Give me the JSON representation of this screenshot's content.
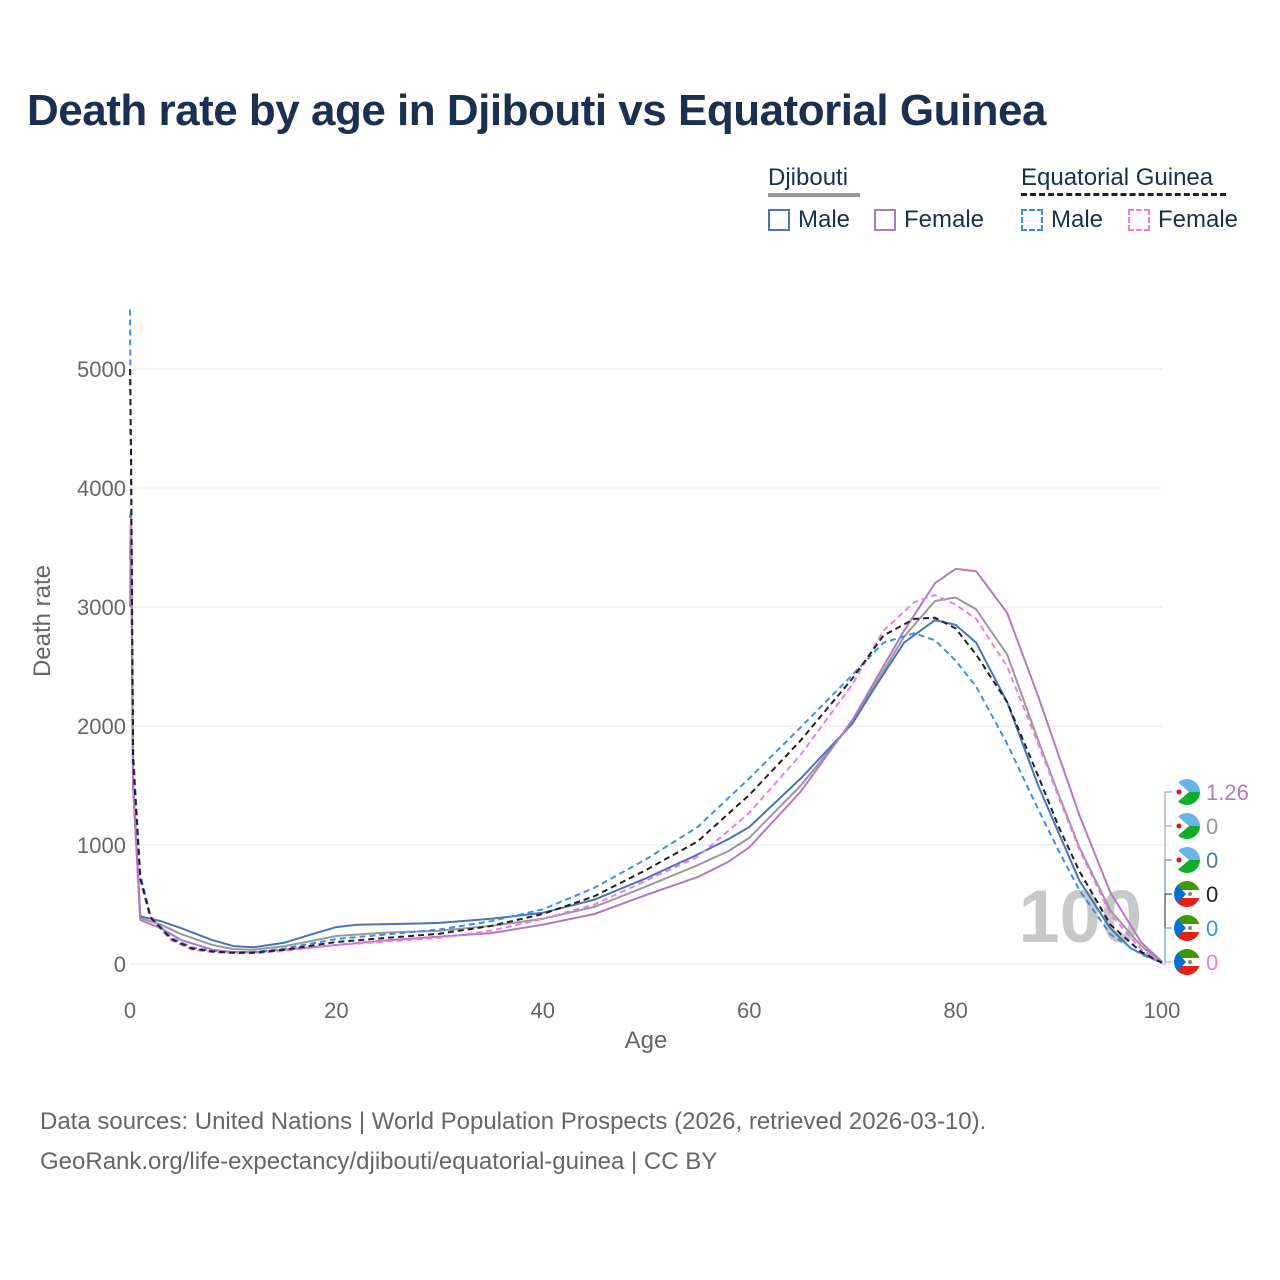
{
  "title": "Death rate by age in Djibouti vs Equatorial Guinea",
  "legend": {
    "groups": [
      {
        "name": "Djibouti",
        "line_style": "solid",
        "color": "#999999",
        "items": [
          {
            "label": "Male",
            "color": "#4a74b4"
          },
          {
            "label": "Female",
            "color": "#b07ac0"
          }
        ]
      },
      {
        "name": "Equatorial Guinea",
        "line_style": "dashed",
        "color": "#222222",
        "items": [
          {
            "label": "Male",
            "color": "#3d8fe8"
          },
          {
            "label": "Female",
            "color": "#f07ae8"
          }
        ]
      }
    ]
  },
  "footer": {
    "line1": "Data sources: United Nations | World Population Prospects (2026, retrieved 2026-03-10).",
    "line2": "GeoRank.org/life-expectancy/djibouti/equatorial-guinea | CC BY"
  },
  "watermark": "100",
  "chart_data": {
    "type": "line",
    "xlabel": "Age",
    "ylabel": "Death rate",
    "xlim": [
      0,
      100
    ],
    "ylim": [
      0,
      5000
    ],
    "xticks": [
      0,
      20,
      40,
      60,
      80,
      100
    ],
    "yticks": [
      0,
      1000,
      2000,
      3000,
      4000,
      5000
    ],
    "grid": true,
    "series": [
      {
        "name": "Djibouti Male",
        "country": "Djibouti",
        "sex": "Male",
        "color": "#4a74b4",
        "dash": false,
        "x": [
          0,
          0.1,
          0.3,
          1,
          3,
          5,
          8,
          10,
          12,
          15,
          18,
          20,
          22,
          25,
          28,
          30,
          35,
          40,
          45,
          50,
          55,
          58,
          60,
          65,
          70,
          72,
          75,
          78,
          80,
          82,
          85,
          88,
          90,
          92,
          95,
          97,
          100
        ],
        "y": [
          3750,
          3800,
          1500,
          400,
          360,
          300,
          200,
          150,
          140,
          180,
          260,
          310,
          330,
          335,
          340,
          345,
          380,
          430,
          540,
          720,
          920,
          1050,
          1150,
          1560,
          2020,
          2300,
          2700,
          2890,
          2850,
          2700,
          2200,
          1500,
          1100,
          700,
          300,
          130,
          10
        ]
      },
      {
        "name": "Djibouti Female",
        "country": "Djibouti",
        "sex": "Female",
        "color": "#b07ac0",
        "dash": false,
        "x": [
          0,
          0.1,
          0.3,
          1,
          3,
          5,
          8,
          10,
          12,
          15,
          20,
          25,
          30,
          35,
          40,
          45,
          50,
          55,
          58,
          60,
          65,
          70,
          75,
          78,
          80,
          82,
          85,
          88,
          90,
          92,
          95,
          98,
          100
        ],
        "y": [
          3000,
          3750,
          1500,
          370,
          300,
          200,
          120,
          100,
          100,
          120,
          160,
          200,
          230,
          260,
          330,
          420,
          580,
          730,
          860,
          980,
          1450,
          2050,
          2800,
          3200,
          3320,
          3300,
          2950,
          2250,
          1750,
          1250,
          600,
          180,
          20
        ]
      },
      {
        "name": "Djibouti (average)",
        "country": "Djibouti",
        "sex": "Both",
        "color": "#999999",
        "dash": false,
        "x": [
          0,
          0.1,
          0.3,
          1,
          3,
          5,
          8,
          10,
          12,
          15,
          20,
          25,
          30,
          35,
          40,
          45,
          50,
          55,
          58,
          60,
          65,
          70,
          75,
          78,
          80,
          82,
          85,
          88,
          90,
          92,
          95,
          98,
          100
        ],
        "y": [
          3400,
          3780,
          1500,
          385,
          330,
          250,
          160,
          125,
          120,
          150,
          235,
          265,
          280,
          320,
          380,
          480,
          650,
          830,
          950,
          1060,
          1500,
          2030,
          2750,
          3050,
          3080,
          2980,
          2600,
          1880,
          1420,
          980,
          450,
          150,
          15
        ]
      },
      {
        "name": "Equatorial Guinea Male",
        "country": "Equatorial Guinea",
        "sex": "Male",
        "color": "#3d8fe8",
        "dash": true,
        "x": [
          0,
          0.1,
          0.3,
          1,
          2,
          4,
          6,
          8,
          10,
          12,
          15,
          20,
          25,
          30,
          35,
          40,
          45,
          50,
          55,
          60,
          65,
          70,
          73,
          76,
          78,
          80,
          82,
          85,
          88,
          90,
          92,
          95,
          98,
          100
        ],
        "y": [
          5500,
          4200,
          1800,
          750,
          400,
          220,
          140,
          110,
          100,
          100,
          130,
          210,
          250,
          290,
          360,
          460,
          640,
          880,
          1150,
          1560,
          1990,
          2430,
          2700,
          2780,
          2720,
          2550,
          2330,
          1850,
          1300,
          950,
          620,
          250,
          80,
          10
        ]
      },
      {
        "name": "Equatorial Guinea Female",
        "country": "Equatorial Guinea",
        "sex": "Female",
        "color": "#f07ae8",
        "dash": true,
        "x": [
          0,
          0.1,
          0.3,
          1,
          2,
          4,
          6,
          8,
          10,
          12,
          15,
          20,
          25,
          30,
          35,
          40,
          45,
          50,
          55,
          60,
          65,
          70,
          73,
          76,
          78,
          80,
          82,
          85,
          88,
          90,
          92,
          95,
          98,
          100
        ],
        "y": [
          4500,
          4400,
          1600,
          700,
          380,
          200,
          120,
          100,
          90,
          90,
          110,
          160,
          190,
          220,
          280,
          380,
          500,
          700,
          900,
          1270,
          1760,
          2350,
          2800,
          3040,
          3100,
          3020,
          2900,
          2500,
          1850,
          1400,
          960,
          420,
          120,
          10
        ]
      },
      {
        "name": "Equatorial Guinea (average)",
        "country": "Equatorial Guinea",
        "sex": "Both",
        "color": "#222222",
        "dash": true,
        "x": [
          0,
          0.1,
          0.3,
          1,
          2,
          4,
          6,
          8,
          10,
          12,
          15,
          20,
          25,
          30,
          35,
          40,
          45,
          50,
          55,
          60,
          65,
          70,
          73,
          76,
          78,
          80,
          82,
          85,
          88,
          90,
          92,
          95,
          98,
          100
        ],
        "y": [
          5000,
          4300,
          1700,
          720,
          390,
          210,
          130,
          105,
          95,
          95,
          120,
          185,
          220,
          255,
          320,
          420,
          570,
          790,
          1030,
          1420,
          1880,
          2400,
          2760,
          2900,
          2910,
          2820,
          2600,
          2200,
          1580,
          1150,
          780,
          330,
          100,
          10
        ]
      }
    ],
    "end_labels": [
      {
        "value": "1.26",
        "color": "#b07ac0",
        "flag": "djibouti"
      },
      {
        "value": "0",
        "color": "#999999",
        "flag": "djibouti"
      },
      {
        "value": "0",
        "color": "#4a74b4",
        "flag": "djibouti"
      },
      {
        "value": "0",
        "color": "#222222",
        "flag": "equatorial-guinea"
      },
      {
        "value": "0",
        "color": "#3d8fe8",
        "flag": "equatorial-guinea"
      },
      {
        "value": "0",
        "color": "#f07ae8",
        "flag": "equatorial-guinea"
      }
    ]
  }
}
